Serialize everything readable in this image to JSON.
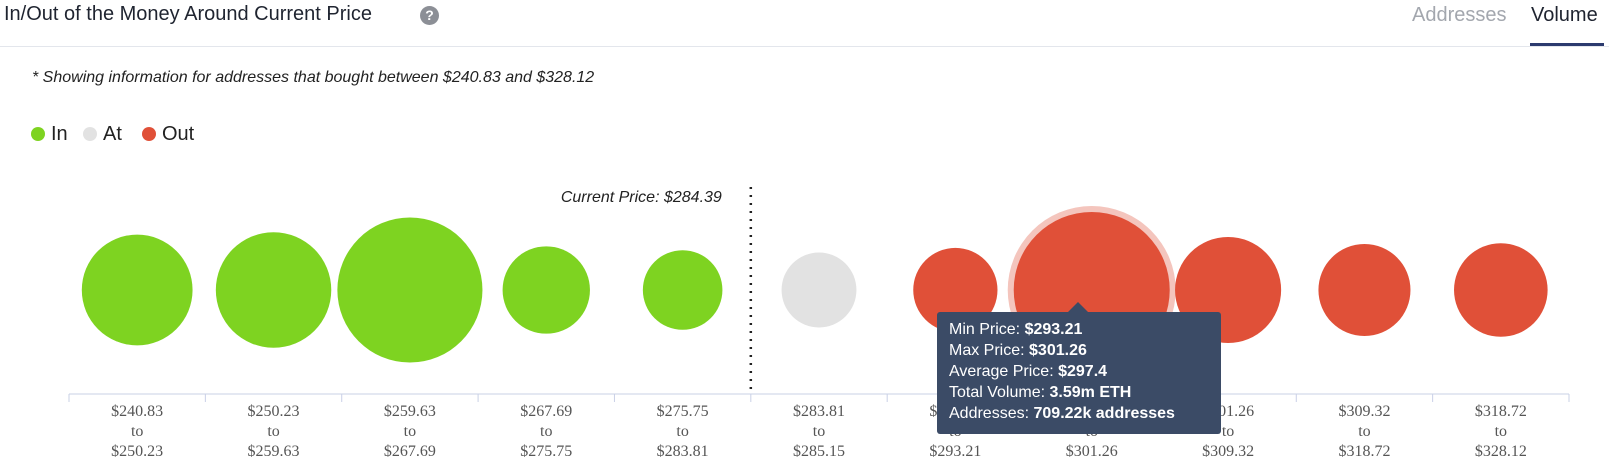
{
  "header": {
    "title": "In/Out of the Money Around Current Price",
    "help_icon": "question-circle-icon",
    "tabs": [
      {
        "label": "Addresses",
        "active": false
      },
      {
        "label": "Volume",
        "active": true
      }
    ]
  },
  "note": "* Showing information for addresses that bought between $240.83 and $328.12",
  "legend": [
    {
      "label": "In",
      "color": "#7ed321"
    },
    {
      "label": "At",
      "color": "#e2e2e2"
    },
    {
      "label": "Out",
      "color": "#e05038"
    }
  ],
  "chart_data": {
    "type": "bubble",
    "current_price_label": "Current Price: $284.39",
    "current_price_marker_after_category": 4,
    "categories": [
      {
        "from": "$240.83",
        "to": "$250.23",
        "status": "In",
        "relative_size": 0.71
      },
      {
        "from": "$250.23",
        "to": "$259.63",
        "status": "In",
        "relative_size": 0.74
      },
      {
        "from": "$259.63",
        "to": "$267.69",
        "status": "In",
        "relative_size": 0.93
      },
      {
        "from": "$267.69",
        "to": "$275.75",
        "status": "In",
        "relative_size": 0.56
      },
      {
        "from": "$275.75",
        "to": "$283.81",
        "status": "In",
        "relative_size": 0.51
      },
      {
        "from": "$283.81",
        "to": "$285.15",
        "status": "At",
        "relative_size": 0.48
      },
      {
        "from": "$285.15",
        "to": "$293.21",
        "status": "Out",
        "relative_size": 0.54
      },
      {
        "from": "$293.21",
        "to": "$301.26",
        "status": "Out",
        "relative_size": 1.0,
        "highlighted": true
      },
      {
        "from": "$301.26",
        "to": "$309.32",
        "status": "Out",
        "relative_size": 0.68
      },
      {
        "from": "$309.32",
        "to": "$318.72",
        "status": "Out",
        "relative_size": 0.59
      },
      {
        "from": "$318.72",
        "to": "$328.12",
        "status": "Out",
        "relative_size": 0.6
      }
    ],
    "range_connector": "to",
    "colors": {
      "In": "#7ed321",
      "At": "#e2e2e2",
      "Out": "#e05038",
      "Out_highlight_halo": "#f4c5bd"
    }
  },
  "tooltip": {
    "rows": [
      {
        "label": "Min Price:",
        "value": "$293.21"
      },
      {
        "label": "Max Price:",
        "value": "$301.26"
      },
      {
        "label": "Average Price:",
        "value": "$297.4"
      },
      {
        "label": "Total Volume:",
        "value": "3.59m ETH"
      },
      {
        "label": "Addresses:",
        "value": "709.22k addresses"
      }
    ]
  }
}
